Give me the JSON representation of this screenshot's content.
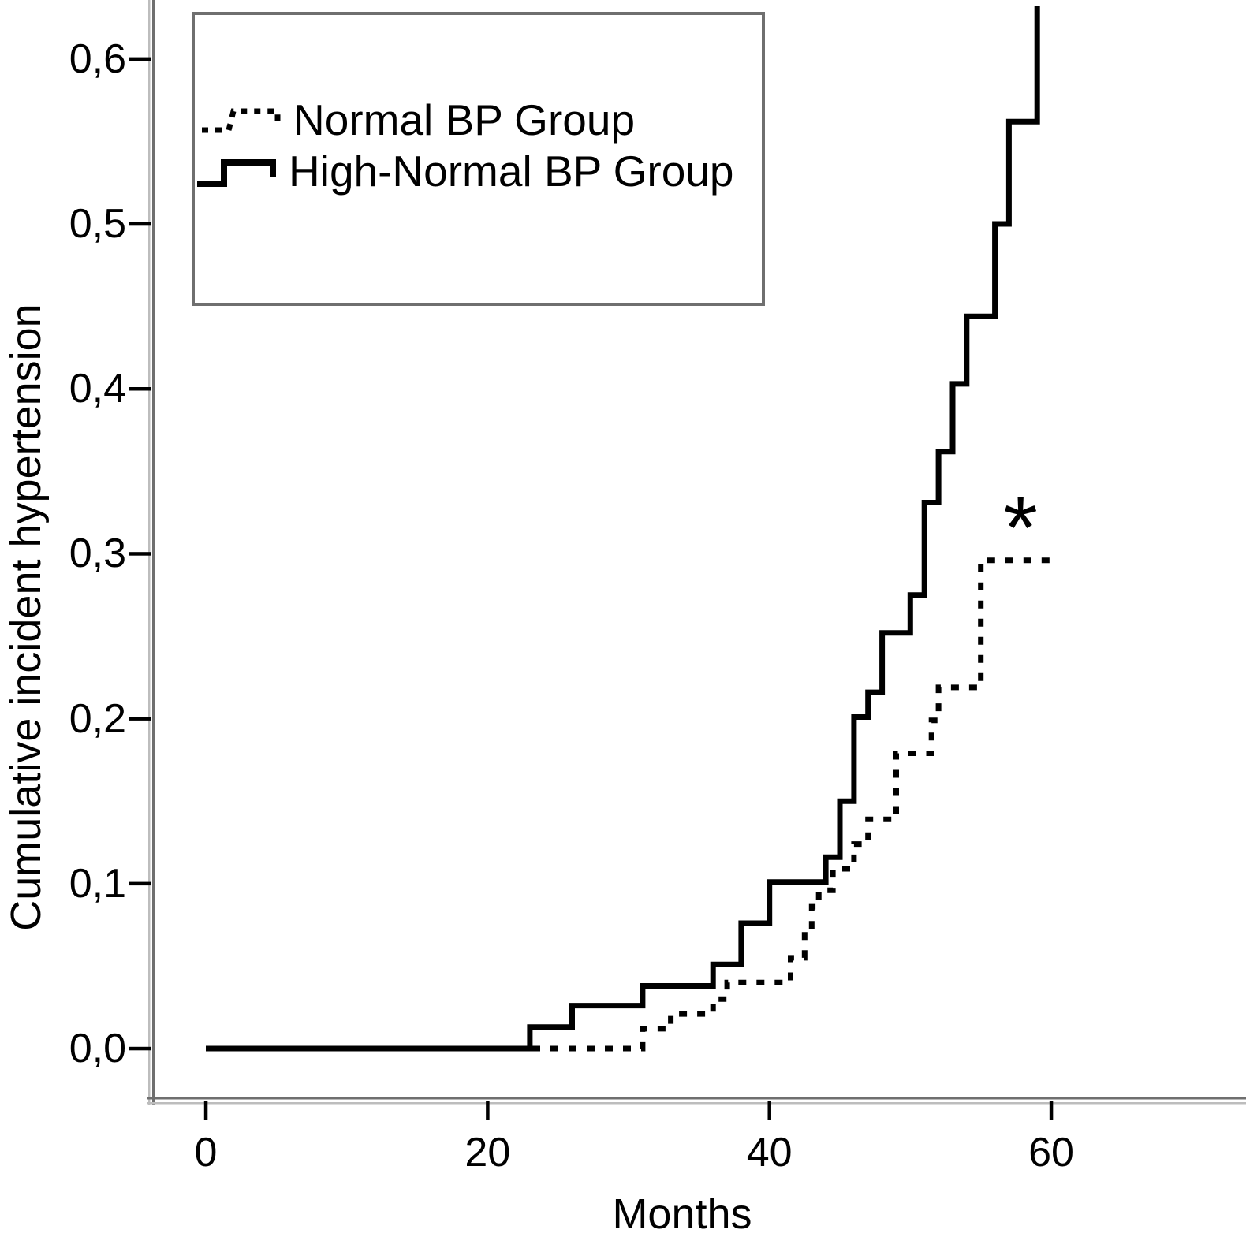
{
  "figure": {
    "background": "#ffffff",
    "curve_color": "#000000",
    "axis_dark_color": "#6f6f6f",
    "axis_light_color": "#bdbdbd",
    "tick_color": "#000000"
  },
  "y_axis": {
    "title": "Cumulative incident hypertension",
    "ticks": [
      {
        "label": "0,6",
        "value": 0.6
      },
      {
        "label": "0,5",
        "value": 0.5
      },
      {
        "label": "0,4",
        "value": 0.4
      },
      {
        "label": "0,3",
        "value": 0.3
      },
      {
        "label": "0,2",
        "value": 0.2
      },
      {
        "label": "0,1",
        "value": 0.1
      },
      {
        "label": "0,0",
        "value": 0.0
      }
    ]
  },
  "x_axis": {
    "title": "Months",
    "ticks": [
      {
        "label": "0",
        "value": 0
      },
      {
        "label": "20",
        "value": 20
      },
      {
        "label": "40",
        "value": 40
      },
      {
        "label": "60",
        "value": 60
      }
    ]
  },
  "legend": {
    "entries": [
      {
        "label": "Normal BP Group",
        "style": "dotted"
      },
      {
        "label": "High-Normal BP Group",
        "style": "solid"
      }
    ]
  },
  "annotation": {
    "symbol": "*",
    "month": 57.8,
    "value": 0.316
  },
  "chart_data": {
    "type": "line",
    "subtype": "kaplan-meier-step",
    "title": "",
    "xlabel": "Months",
    "ylabel": "Cumulative incident hypertension",
    "xlim": [
      0,
      74
    ],
    "ylim": [
      0.0,
      0.65
    ],
    "x_tick_values": [
      0,
      20,
      40,
      60
    ],
    "y_tick_values": [
      0.0,
      0.1,
      0.2,
      0.3,
      0.4,
      0.5,
      0.6
    ],
    "grid": false,
    "legend_position": "top-left",
    "series": [
      {
        "name": "High-Normal BP Group",
        "style": "solid",
        "end_month": 59,
        "note": "final rise truncated at top of plot",
        "steps": [
          [
            0,
            0.0
          ],
          [
            23,
            0.013
          ],
          [
            26,
            0.026
          ],
          [
            31,
            0.038
          ],
          [
            36,
            0.051
          ],
          [
            38,
            0.076
          ],
          [
            40,
            0.101
          ],
          [
            44,
            0.116
          ],
          [
            45,
            0.15
          ],
          [
            46,
            0.201
          ],
          [
            47,
            0.216
          ],
          [
            48,
            0.252
          ],
          [
            50,
            0.275
          ],
          [
            51,
            0.331
          ],
          [
            52,
            0.362
          ],
          [
            53,
            0.403
          ],
          [
            54,
            0.444
          ],
          [
            56,
            0.5
          ],
          [
            57,
            0.562
          ],
          [
            59,
            0.632
          ]
        ]
      },
      {
        "name": "Normal BP Group",
        "style": "dotted",
        "end_month": 60.5,
        "steps": [
          [
            0,
            0.0
          ],
          [
            31,
            0.012
          ],
          [
            33,
            0.021
          ],
          [
            36,
            0.03
          ],
          [
            37,
            0.04
          ],
          [
            41.5,
            0.055
          ],
          [
            42.5,
            0.072
          ],
          [
            43,
            0.086
          ],
          [
            43.5,
            0.096
          ],
          [
            44.5,
            0.109
          ],
          [
            46,
            0.124
          ],
          [
            47,
            0.139
          ],
          [
            49,
            0.179
          ],
          [
            51.5,
            0.199
          ],
          [
            52,
            0.219
          ],
          [
            55,
            0.296
          ]
        ]
      }
    ]
  }
}
